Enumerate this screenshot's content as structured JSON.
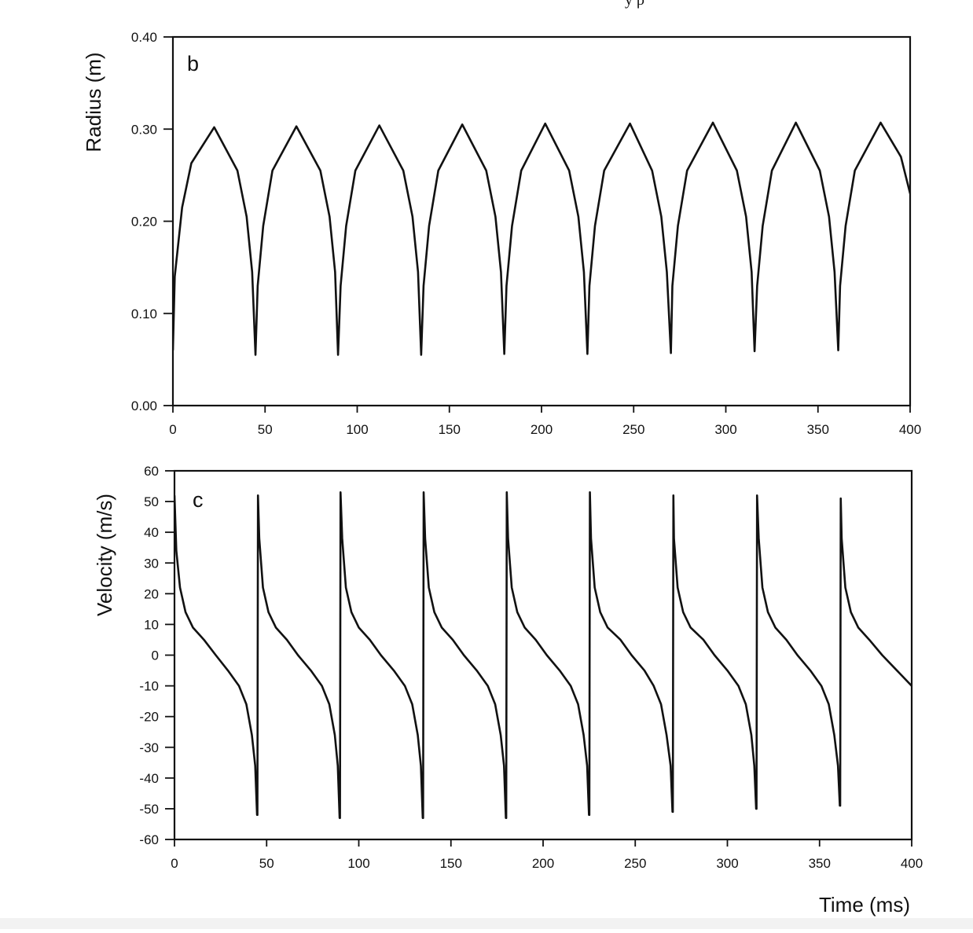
{
  "header_fragment": "y  ρ",
  "chart_data": [
    {
      "type": "line",
      "panel_label": "b",
      "xlabel": "",
      "ylabel": "Radius (m)",
      "xlim": [
        0,
        400
      ],
      "ylim": [
        0.0,
        0.4
      ],
      "x_ticks": [
        0,
        50,
        100,
        150,
        200,
        250,
        300,
        350,
        400
      ],
      "x_tick_labels": [
        "0",
        "50",
        "100",
        "150",
        "200",
        "250",
        "300",
        "350",
        "400"
      ],
      "y_ticks": [
        0.0,
        0.1,
        0.2,
        0.3,
        0.4
      ],
      "y_tick_labels": [
        "0.00",
        "0.10",
        "0.20",
        "0.30",
        "0.40"
      ],
      "grid": false,
      "series": [
        {
          "style": "black-line",
          "x": [
            0,
            1,
            5,
            10,
            22.4,
            35,
            40,
            43,
            44.8,
            46,
            49,
            54,
            67,
            80,
            85,
            88,
            89.6,
            91,
            94,
            99,
            112,
            125,
            130,
            133,
            134.7,
            136,
            139,
            144,
            157,
            170,
            175,
            178,
            179.8,
            181,
            184,
            189,
            202,
            215,
            220,
            223,
            224.9,
            226,
            229,
            234,
            248,
            260,
            265,
            268,
            270.2,
            271,
            274,
            279,
            293,
            306,
            311,
            314,
            315.6,
            317,
            320,
            325,
            338,
            351,
            356,
            359,
            361,
            362,
            365,
            370,
            384,
            395,
            400
          ],
          "y": [
            0.06,
            0.14,
            0.215,
            0.263,
            0.302,
            0.255,
            0.205,
            0.145,
            0.055,
            0.13,
            0.195,
            0.255,
            0.303,
            0.255,
            0.205,
            0.145,
            0.055,
            0.13,
            0.195,
            0.255,
            0.304,
            0.255,
            0.205,
            0.145,
            0.055,
            0.13,
            0.195,
            0.255,
            0.305,
            0.255,
            0.205,
            0.145,
            0.056,
            0.13,
            0.195,
            0.255,
            0.306,
            0.255,
            0.205,
            0.145,
            0.056,
            0.13,
            0.195,
            0.255,
            0.306,
            0.255,
            0.205,
            0.145,
            0.057,
            0.13,
            0.195,
            0.255,
            0.307,
            0.255,
            0.205,
            0.145,
            0.059,
            0.13,
            0.195,
            0.255,
            0.307,
            0.255,
            0.205,
            0.145,
            0.06,
            0.13,
            0.195,
            0.255,
            0.307,
            0.27,
            0.23
          ]
        }
      ]
    },
    {
      "type": "line",
      "panel_label": "c",
      "xlabel": "Time (ms)",
      "ylabel": "Velocity (m/s)",
      "xlim": [
        0,
        400
      ],
      "ylim": [
        -60,
        60
      ],
      "x_ticks": [
        0,
        50,
        100,
        150,
        200,
        250,
        300,
        350,
        400
      ],
      "x_tick_labels": [
        "0",
        "50",
        "100",
        "150",
        "200",
        "250",
        "300",
        "350",
        "400"
      ],
      "y_ticks": [
        -60,
        -50,
        -40,
        -30,
        -20,
        -10,
        0,
        10,
        20,
        30,
        40,
        50,
        60
      ],
      "y_tick_labels": [
        "-60",
        "-50",
        "-40",
        "-30",
        "-20",
        "-10",
        "0",
        "10",
        "20",
        "30",
        "40",
        "50",
        "60"
      ],
      "grid": false,
      "series": [
        {
          "style": "black-line",
          "x": [
            0,
            1,
            3,
            6,
            10,
            16,
            22.4,
            29,
            35,
            39,
            42,
            43.8,
            44.8,
            45,
            45.3,
            46,
            48,
            51,
            55,
            61,
            67,
            74,
            80,
            84,
            87,
            88.6,
            89.6,
            89.8,
            90.1,
            91,
            93,
            96,
            100,
            106,
            112,
            119,
            125,
            129,
            132,
            133.7,
            134.7,
            134.9,
            135.2,
            136,
            138,
            141,
            145,
            151,
            157,
            164,
            170,
            174,
            177,
            178.8,
            179.8,
            180,
            180.3,
            181,
            183,
            186,
            190,
            196,
            202,
            209,
            215,
            219,
            222,
            223.9,
            224.9,
            225.1,
            225.4,
            226,
            228,
            231,
            235,
            242,
            248,
            255,
            260,
            264,
            267,
            269.2,
            270.2,
            270.4,
            270.7,
            271,
            273,
            276,
            280,
            287,
            293,
            300,
            306,
            310,
            313,
            314.6,
            315.6,
            315.8,
            316.1,
            317,
            319,
            322,
            326,
            332,
            338,
            345,
            351,
            355,
            358,
            360,
            361,
            361.2,
            361.5,
            362,
            364,
            367,
            371,
            377,
            384,
            392,
            400
          ],
          "y": [
            52,
            34,
            22,
            14,
            9,
            5,
            0,
            -5,
            -10,
            -16,
            -26,
            -36,
            -52,
            -52,
            52,
            38,
            22,
            14,
            9,
            5,
            0,
            -5,
            -10,
            -16,
            -26,
            -36,
            -53,
            -53,
            53,
            38,
            22,
            14,
            9,
            5,
            0,
            -5,
            -10,
            -16,
            -26,
            -36,
            -53,
            -53,
            53,
            38,
            22,
            14,
            9,
            5,
            0,
            -5,
            -10,
            -16,
            -26,
            -36,
            -53,
            -53,
            53,
            38,
            22,
            14,
            9,
            5,
            0,
            -5,
            -10,
            -16,
            -26,
            -36,
            -52,
            -52,
            53,
            38,
            22,
            14,
            9,
            5,
            0,
            -5,
            -10,
            -16,
            -26,
            -36,
            -51,
            -51,
            52,
            38,
            22,
            14,
            9,
            5,
            0,
            -5,
            -10,
            -16,
            -26,
            -36,
            -50,
            -50,
            52,
            38,
            22,
            14,
            9,
            5,
            0,
            -5,
            -10,
            -16,
            -26,
            -36,
            -49,
            -49,
            51,
            38,
            22,
            14,
            9,
            5,
            0,
            -5,
            -10
          ]
        }
      ]
    }
  ]
}
